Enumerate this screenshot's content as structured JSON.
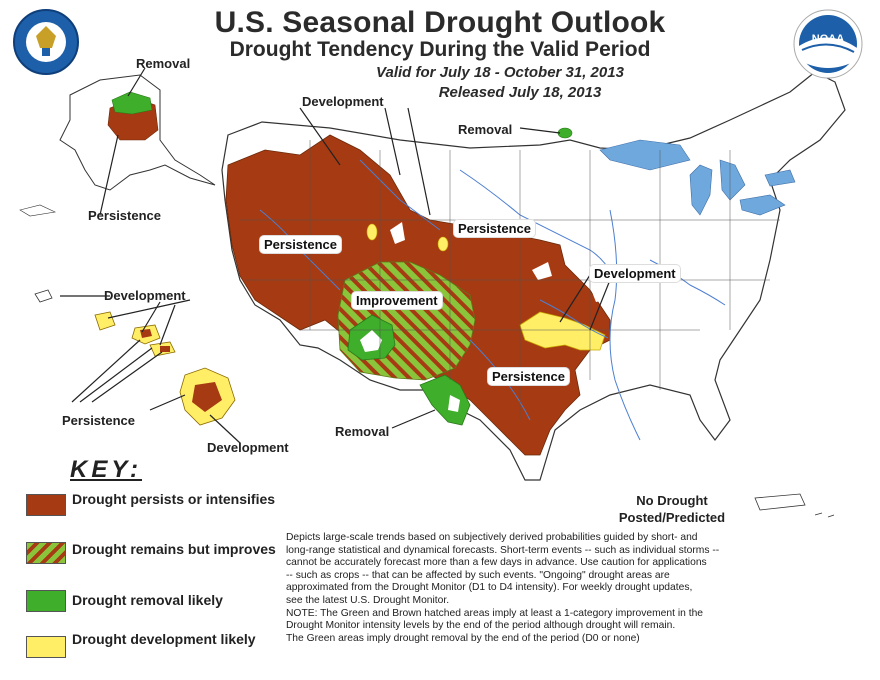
{
  "header": {
    "title": "U.S. Seasonal Drought Outlook",
    "subtitle": "Drought Tendency During the Valid Period",
    "valid": "Valid for July 18 - October 31, 2013",
    "released": "Released July 18, 2013"
  },
  "logos": {
    "left": "Department of Commerce seal",
    "right": "NOAA",
    "right_icon": "noaa-logo-icon",
    "left_icon": "commerce-seal-icon"
  },
  "map_labels": {
    "alaska_removal": "Removal",
    "alaska_persistence": "Persistence",
    "development_north": "Development",
    "removal_north": "Removal",
    "persistence_west": "Persistence",
    "persistence_plains": "Persistence",
    "improvement": "Improvement",
    "development_east": "Development",
    "persistence_texas": "Persistence",
    "removal_south": "Removal",
    "hawaii_development": "Development",
    "hawaii_persistence": "Persistence",
    "hawaii_development_big": "Development"
  },
  "key": {
    "title": "KEY:",
    "items": [
      {
        "label": "Drought persists or intensifies",
        "color": "#a63a12"
      },
      {
        "label": "Drought remains but improves",
        "color": "#8ac43a",
        "stripe": "#a63a12"
      },
      {
        "label": "Drought removal likely",
        "color": "#3fae2a"
      },
      {
        "label": "Drought development likely",
        "color": "#ffee66"
      }
    ]
  },
  "no_drought": {
    "line1": "No Drought",
    "line2": "Posted/Predicted"
  },
  "notes": [
    "Depicts large-scale trends based on subjectively derived probabilities guided by short- and",
    "long-range statistical and dynamical forecasts. Short-term events -- such as individual storms --",
    "cannot be accurately forecast more than a few days in advance. Use caution for applications",
    "-- such as crops -- that can be affected by such events. \"Ongoing\" drought areas are",
    "approximated from the Drought Monitor (D1 to D4 intensity). For weekly drought updates,",
    "see the latest U.S. Drought Monitor.",
    "NOTE: The Green and Brown hatched areas imply at least a 1-category improvement in the",
    "Drought Monitor intensity levels by the end of the period although drought will remain.",
    "The Green areas imply drought removal by the end of the period (D0 or none)"
  ],
  "colors": {
    "persist": "#a63a12",
    "improve_green": "#8ac43a",
    "removal": "#3fae2a",
    "development": "#ffee66",
    "water": "#6fa8dc",
    "rivers": "#4d7fd1"
  }
}
